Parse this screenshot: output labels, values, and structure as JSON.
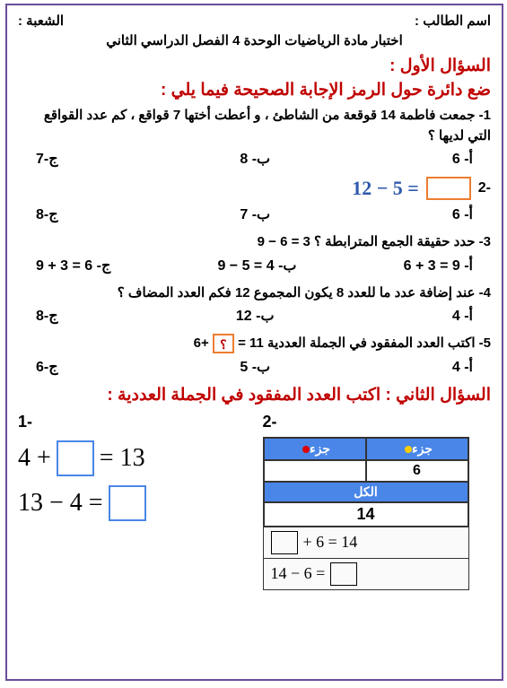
{
  "header": {
    "student_label": "اسم الطالب :",
    "section_label": "الشعبة :",
    "subtitle": "اختبار مادة الرياضيات الوحدة 4 الفصل  الدراسي الثاني"
  },
  "q1": {
    "title": "السؤال الأول :",
    "instruction": "ضع دائرة حول  الرمز الإجابة الصحيحة فيما يلي :",
    "items": [
      {
        "text": "1- جمعت فاطمة 14 قوقعة من الشاطئ  ، و أعطت أختها 7 قواقع ، كم عدد القواقع التي لديها ؟",
        "a": "أ-   6",
        "b": "ب- 8",
        "c": "ج-7"
      },
      {
        "prefix": "-2",
        "equation": "12 − 5 =",
        "a": "أ-   6",
        "b": "ب- 7",
        "c": "ج-8"
      },
      {
        "text": "3-  حدد حقيقة الجمع المترابطة ؟   3 = 6 − 9",
        "a": "أ-   9 = 3 + 6",
        "b": "ب- 4 = 5 − 9",
        "c": "ج-  6 = 3 + 9"
      },
      {
        "text": "4- عند إضافة  عدد ما للعدد 8 يكون المجموع  12 فكم العدد المضاف ؟",
        "a": "أ-   4",
        "b": "ب- 12",
        "c": "ج-8"
      },
      {
        "text_pre": "5-  اكتب العدد المفقود في الجملة العددية  11   =",
        "text_post": "+6",
        "qmark": "؟",
        "a": "أ-   4",
        "b": "ب- 5",
        "c": "ج-6"
      }
    ]
  },
  "q2": {
    "title": "السؤال الثاني :   اكتب العدد المفقود في الجملة العددية   :",
    "left": {
      "label": "1-",
      "eq1_l": "4 +",
      "eq1_r": "= 13",
      "eq2_l": "13 − 4 ="
    },
    "right": {
      "label": "2-",
      "part_label": "جزء",
      "six": "6",
      "kull": "الكل",
      "fourteen": "14",
      "eq1_r": "+ 6 = 14",
      "eq2": "14 − 6 ="
    }
  }
}
